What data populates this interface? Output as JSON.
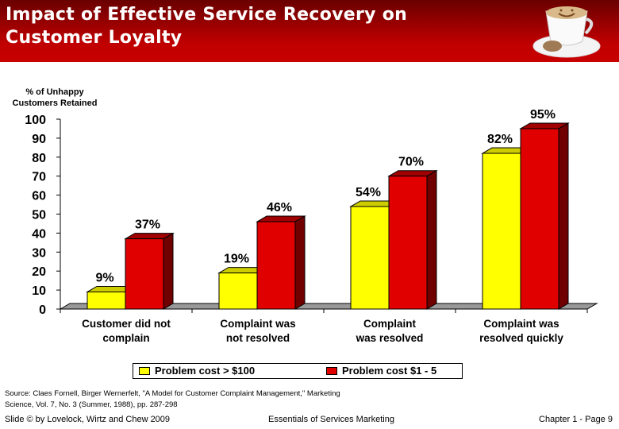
{
  "header": {
    "title_line1": "Impact of Effective Service Recovery on",
    "title_line2": "Customer Loyalty",
    "image": "coffee-cup-smiley-with-cookie"
  },
  "chart_data": {
    "type": "bar",
    "style": "3d-clustered",
    "ylabel": "% of Unhappy Customers Retained",
    "ylim": [
      0,
      100
    ],
    "yticks": [
      0,
      10,
      20,
      30,
      40,
      50,
      60,
      70,
      80,
      90,
      100
    ],
    "categories": [
      "Customer did not complain",
      "Complaint was not resolved",
      "Complaint was resolved",
      "Complaint was resolved quickly"
    ],
    "category_lines": [
      [
        "Customer did not",
        "complain"
      ],
      [
        "Complaint was",
        "not resolved"
      ],
      [
        "Complaint",
        "was resolved"
      ],
      [
        "Complaint was",
        "resolved quickly"
      ]
    ],
    "series": [
      {
        "name": "Problem cost > $100",
        "color": "#ffff00",
        "values": [
          9,
          19,
          54,
          82
        ],
        "labels": [
          "9%",
          "19%",
          "54%",
          "82%"
        ]
      },
      {
        "name": "Problem cost $1 - 5",
        "color": "#e00000",
        "values": [
          37,
          46,
          70,
          95
        ],
        "labels": [
          "37%",
          "46%",
          "70%",
          "95%"
        ]
      }
    ],
    "legend": "bottom",
    "grid": false
  },
  "source": {
    "line1": "Source: Claes Fornell, Birger Wernerfelt, \"A Model for Customer Complaint Management,\" Marketing",
    "line2": "Science, Vol. 7, No. 3 (Summer, 1988), pp. 287-298"
  },
  "footer": {
    "left": "Slide © by Lovelock, Wirtz and Chew 2009",
    "center": "Essentials of Services Marketing",
    "right": "Chapter 1 - Page 9"
  }
}
